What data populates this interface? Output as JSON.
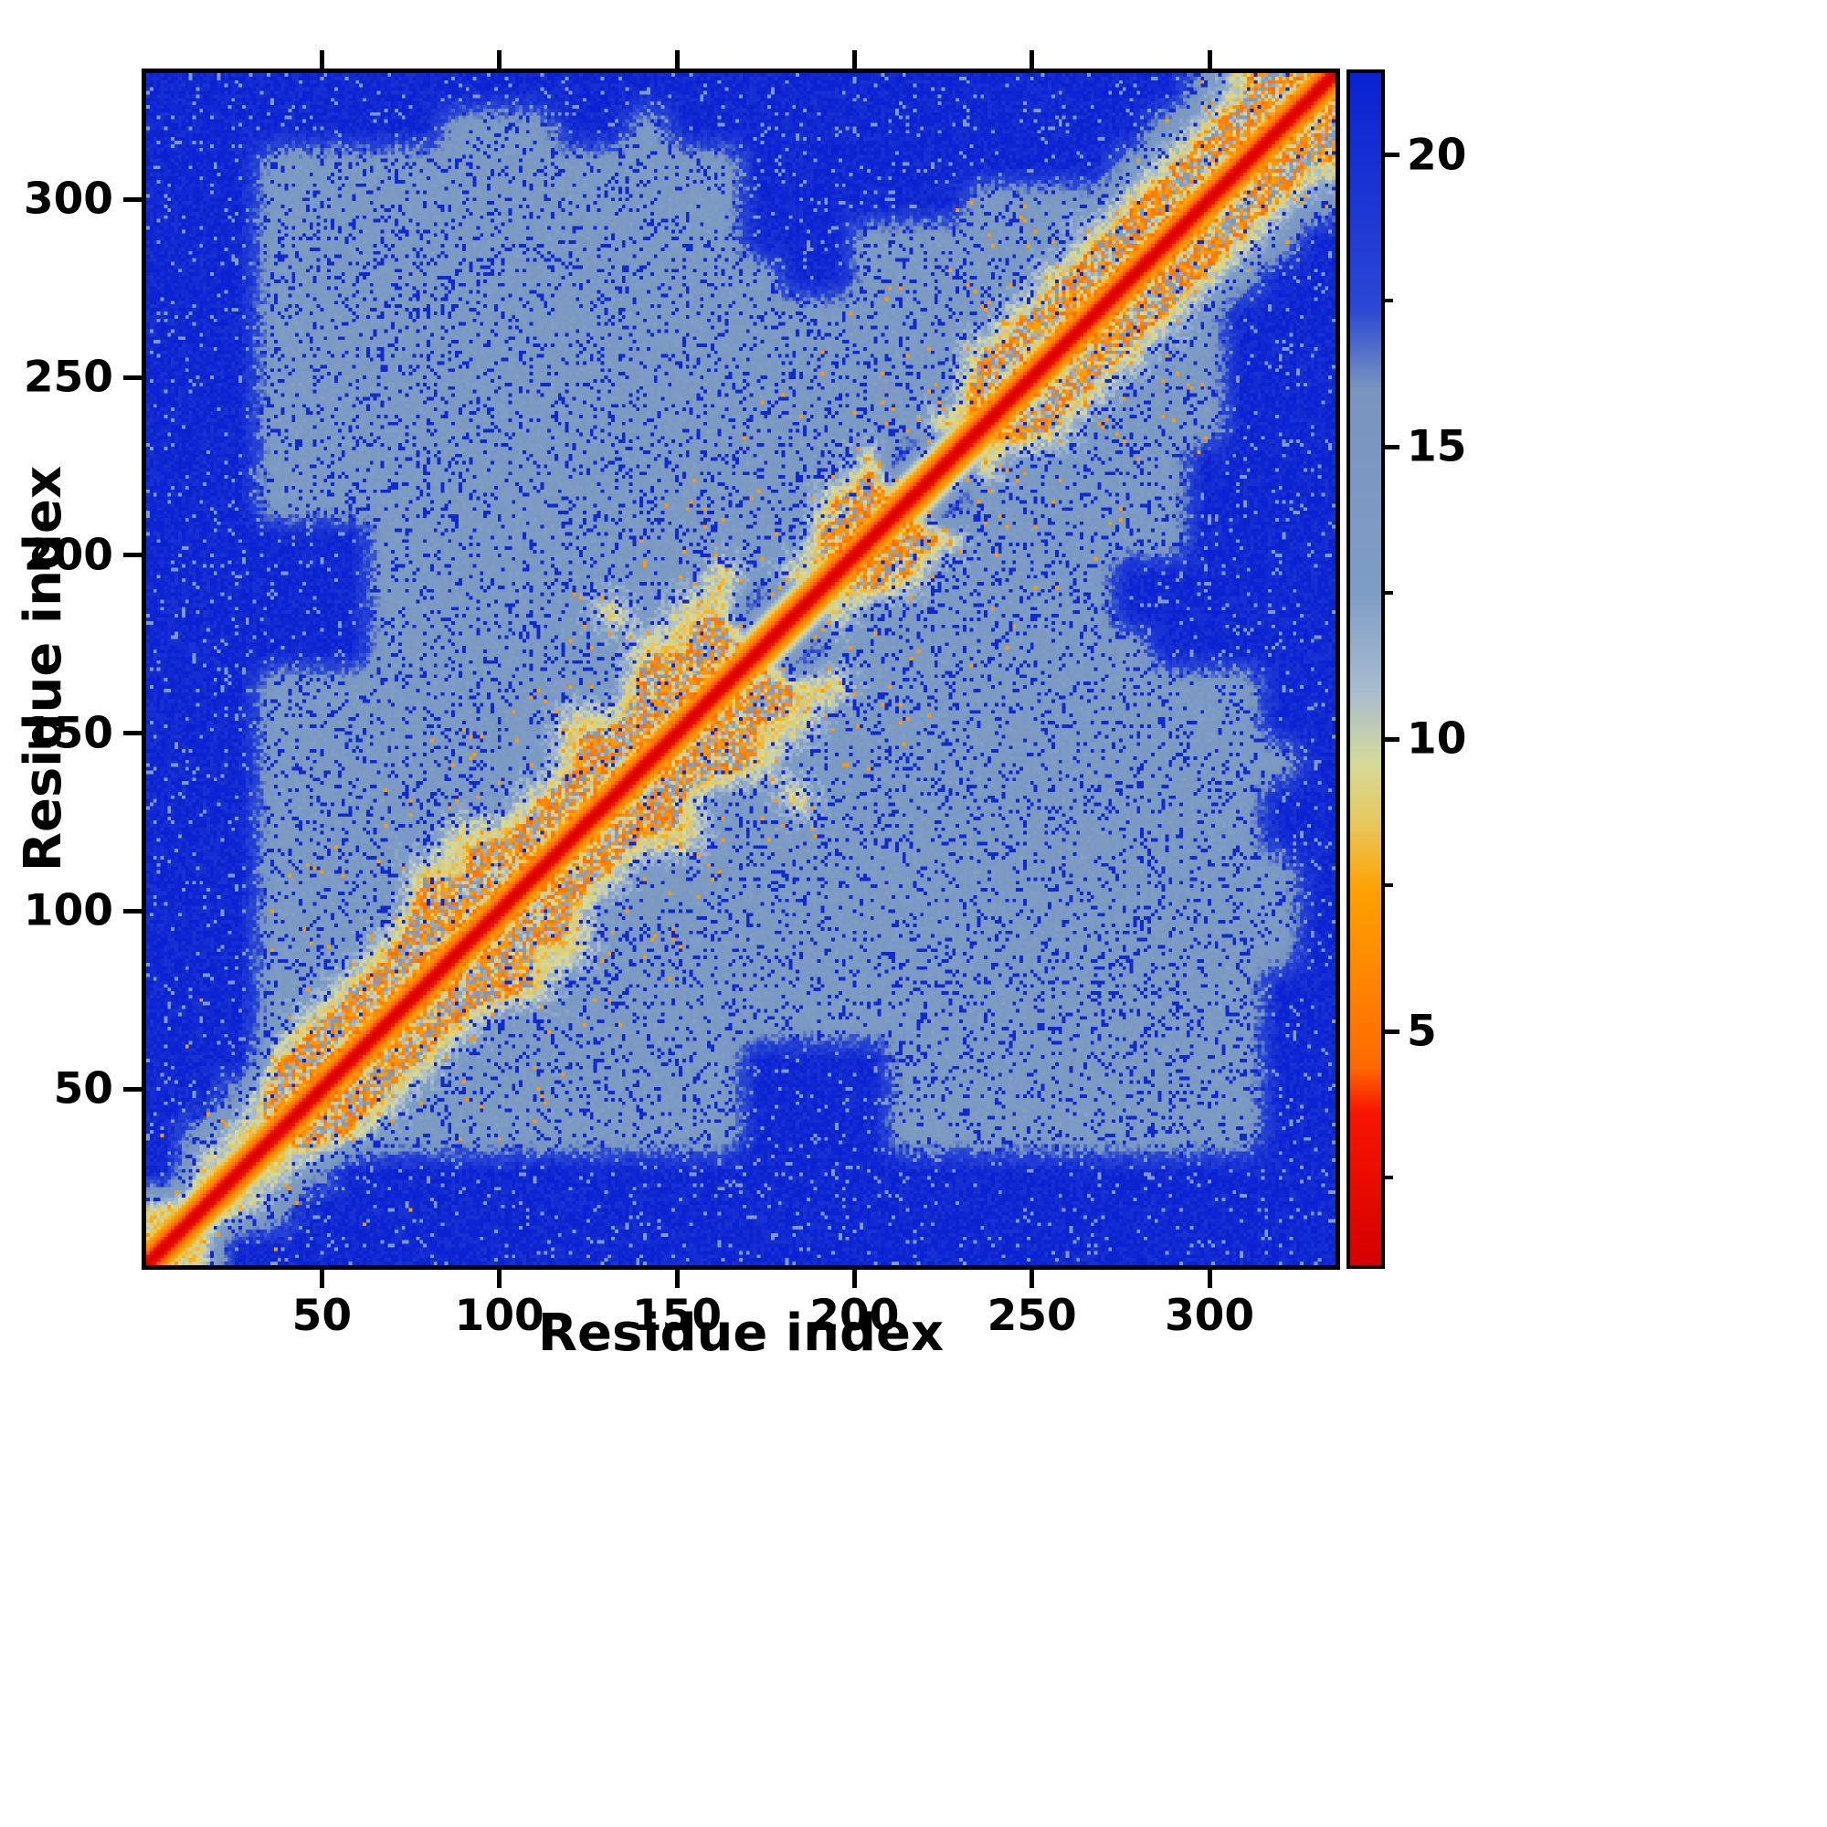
{
  "figure": {
    "background": "#ffffff",
    "frame_color": "#000000",
    "text_color": "#000000"
  },
  "chart_data": {
    "type": "heatmap",
    "title": "",
    "xlabel": "Residue index",
    "ylabel": "Residue index",
    "x_range": [
      1,
      335
    ],
    "y_range": [
      1,
      335
    ],
    "x_ticks": [
      50,
      100,
      150,
      200,
      250,
      300
    ],
    "y_ticks": [
      50,
      100,
      150,
      200,
      250,
      300
    ],
    "resolution": 335,
    "colorbar": {
      "vmin": 1,
      "vmax": 21.4,
      "ticks": [
        5,
        10,
        15,
        20
      ],
      "minor_ticks": [
        2.5,
        7.5,
        12.5,
        17.5
      ],
      "orientation": "vertical",
      "position": "right"
    },
    "colormap_stops": [
      {
        "v": 1.0,
        "c": "#d60000"
      },
      {
        "v": 3.6,
        "c": "#f81500"
      },
      {
        "v": 4.4,
        "c": "#ff6a00"
      },
      {
        "v": 7.4,
        "c": "#ffa100"
      },
      {
        "v": 8.6,
        "c": "#e6c95f"
      },
      {
        "v": 9.6,
        "c": "#d5da9b"
      },
      {
        "v": 10.8,
        "c": "#a9bccf"
      },
      {
        "v": 12.5,
        "c": "#7e9dc5"
      },
      {
        "v": 16.0,
        "c": "#7795bf"
      },
      {
        "v": 17.4,
        "c": "#2b47d4"
      },
      {
        "v": 21.4,
        "c": "#0a22d2"
      }
    ],
    "matrix": {
      "description": "Symmetric residue-residue distance map. Coarse 32x32 upper-triangle grid of distance classes read from the image; each row string starts at its diagonal cell (j=i..31). 0=far/deep blue, 1=mid/light blue, 2=near/yellow-green, 3=contact/orange, 4=adjacent/red. Thin red diagonal = self distances.",
      "class_distances": {
        "0": 20.8,
        "1": 13.6,
        "2": 9.0,
        "3": 6.3,
        "4": 2.4
      },
      "rows": [
        "22000000000000000000000000000000",
        "2210000000000000000000000000000",
        "221000000000000000000000000000",
        "23211111111110000111111111100",
        "2321111111110000111111111100",
        "232111111110000111111111100",
        "23211111111111111111111100",
        "2332111111111111111111100",
        "232211111111111111111110",
        "23211111111111111111110",
        "2321111111111111111110",
        "232211111111111111100",
        "23211211111111111100",
        "2332111111111111110",
        "232211111111111100",
        "23221111111111100",
        "2011111111100000",
        "021111111000000",
        "23211111000000",
        "2321111110000",
        "201111110000",
        "02111110000",
        "2321111000",
        "232111000",
        "23211000",
        "2321000",
        "232100",
        "23210",
        "2321",
        "232",
        "23",
        "2"
      ],
      "diagonal_model": {
        "base": 0.7,
        "slope": 1.15
      },
      "noise_amp": 2.6
    }
  }
}
